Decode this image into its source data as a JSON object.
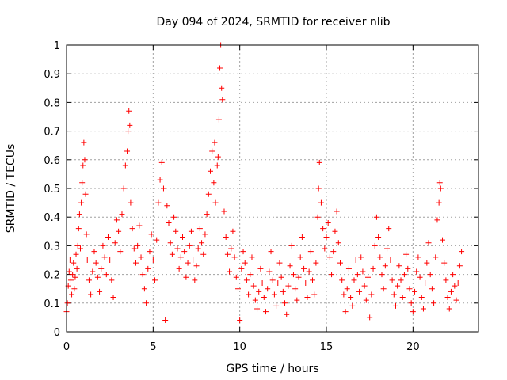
{
  "chart_data": {
    "type": "scatter",
    "title": "Day 094 of 2024, SRMTID for receiver nlib",
    "xlabel": "GPS time / hours",
    "ylabel": "SRMTID / TECUs",
    "xlim": [
      0,
      23.78
    ],
    "ylim": [
      0,
      1
    ],
    "x_ticks": [
      0,
      5,
      10,
      15,
      20
    ],
    "y_ticks": [
      0,
      0.1,
      0.2,
      0.3,
      0.4,
      0.5,
      0.6,
      0.7,
      0.8,
      0.9,
      1
    ],
    "x_tick_labels": [
      "0",
      "5",
      "10",
      "15",
      "20"
    ],
    "y_tick_labels": [
      "0",
      "0.1",
      "0.2",
      "0.3",
      "0.4",
      "0.5",
      "0.6",
      "0.7",
      "0.8",
      "0.9",
      "1"
    ],
    "grid": true,
    "marker": "+",
    "color": "#ff0000",
    "series": [
      {
        "name": "SRMTID",
        "points": [
          [
            0.0,
            0.07
          ],
          [
            0.05,
            0.1
          ],
          [
            0.1,
            0.16
          ],
          [
            0.15,
            0.21
          ],
          [
            0.2,
            0.25
          ],
          [
            0.25,
            0.18
          ],
          [
            0.3,
            0.13
          ],
          [
            0.35,
            0.2
          ],
          [
            0.4,
            0.24
          ],
          [
            0.45,
            0.15
          ],
          [
            0.5,
            0.19
          ],
          [
            0.55,
            0.27
          ],
          [
            0.6,
            0.22
          ],
          [
            0.65,
            0.3
          ],
          [
            0.7,
            0.36
          ],
          [
            0.75,
            0.41
          ],
          [
            0.8,
            0.29
          ],
          [
            0.85,
            0.45
          ],
          [
            0.9,
            0.52
          ],
          [
            0.95,
            0.58
          ],
          [
            1.0,
            0.66
          ],
          [
            1.05,
            0.6
          ],
          [
            1.1,
            0.48
          ],
          [
            1.15,
            0.34
          ],
          [
            1.2,
            0.25
          ],
          [
            1.3,
            0.18
          ],
          [
            1.4,
            0.13
          ],
          [
            1.5,
            0.21
          ],
          [
            1.6,
            0.28
          ],
          [
            1.7,
            0.24
          ],
          [
            1.8,
            0.19
          ],
          [
            1.9,
            0.14
          ],
          [
            2.0,
            0.22
          ],
          [
            2.1,
            0.3
          ],
          [
            2.2,
            0.26
          ],
          [
            2.3,
            0.2
          ],
          [
            2.4,
            0.33
          ],
          [
            2.5,
            0.25
          ],
          [
            2.6,
            0.18
          ],
          [
            2.7,
            0.12
          ],
          [
            2.8,
            0.31
          ],
          [
            2.9,
            0.39
          ],
          [
            3.0,
            0.35
          ],
          [
            3.1,
            0.28
          ],
          [
            3.2,
            0.41
          ],
          [
            3.3,
            0.5
          ],
          [
            3.4,
            0.58
          ],
          [
            3.5,
            0.63
          ],
          [
            3.55,
            0.7
          ],
          [
            3.6,
            0.77
          ],
          [
            3.65,
            0.72
          ],
          [
            3.7,
            0.45
          ],
          [
            3.8,
            0.36
          ],
          [
            3.9,
            0.29
          ],
          [
            4.0,
            0.24
          ],
          [
            4.1,
            0.3
          ],
          [
            4.2,
            0.37
          ],
          [
            4.3,
            0.26
          ],
          [
            4.4,
            0.2
          ],
          [
            4.5,
            0.15
          ],
          [
            4.6,
            0.1
          ],
          [
            4.7,
            0.22
          ],
          [
            4.8,
            0.28
          ],
          [
            4.9,
            0.34
          ],
          [
            5.0,
            0.25
          ],
          [
            5.1,
            0.18
          ],
          [
            5.2,
            0.32
          ],
          [
            5.3,
            0.45
          ],
          [
            5.4,
            0.53
          ],
          [
            5.5,
            0.59
          ],
          [
            5.6,
            0.5
          ],
          [
            5.7,
            0.04
          ],
          [
            5.8,
            0.44
          ],
          [
            5.9,
            0.38
          ],
          [
            6.0,
            0.31
          ],
          [
            6.1,
            0.27
          ],
          [
            6.2,
            0.4
          ],
          [
            6.3,
            0.35
          ],
          [
            6.4,
            0.29
          ],
          [
            6.5,
            0.22
          ],
          [
            6.6,
            0.26
          ],
          [
            6.7,
            0.33
          ],
          [
            6.8,
            0.28
          ],
          [
            6.9,
            0.19
          ],
          [
            7.0,
            0.24
          ],
          [
            7.1,
            0.3
          ],
          [
            7.2,
            0.35
          ],
          [
            7.3,
            0.25
          ],
          [
            7.4,
            0.18
          ],
          [
            7.5,
            0.23
          ],
          [
            7.6,
            0.29
          ],
          [
            7.7,
            0.36
          ],
          [
            7.8,
            0.31
          ],
          [
            7.9,
            0.27
          ],
          [
            8.0,
            0.34
          ],
          [
            8.1,
            0.41
          ],
          [
            8.2,
            0.48
          ],
          [
            8.3,
            0.56
          ],
          [
            8.4,
            0.63
          ],
          [
            8.5,
            0.52
          ],
          [
            8.55,
            0.66
          ],
          [
            8.6,
            0.45
          ],
          [
            8.7,
            0.58
          ],
          [
            8.75,
            0.61
          ],
          [
            8.8,
            0.74
          ],
          [
            8.85,
            0.92
          ],
          [
            8.9,
            1.0
          ],
          [
            8.95,
            0.85
          ],
          [
            9.0,
            0.81
          ],
          [
            9.1,
            0.42
          ],
          [
            9.2,
            0.33
          ],
          [
            9.3,
            0.27
          ],
          [
            9.4,
            0.21
          ],
          [
            9.5,
            0.29
          ],
          [
            9.6,
            0.35
          ],
          [
            9.7,
            0.26
          ],
          [
            9.8,
            0.19
          ],
          [
            9.9,
            0.15
          ],
          [
            10.0,
            0.04
          ],
          [
            10.1,
            0.22
          ],
          [
            10.2,
            0.28
          ],
          [
            10.3,
            0.24
          ],
          [
            10.4,
            0.18
          ],
          [
            10.5,
            0.13
          ],
          [
            10.6,
            0.2
          ],
          [
            10.7,
            0.26
          ],
          [
            10.8,
            0.16
          ],
          [
            10.9,
            0.11
          ],
          [
            11.0,
            0.08
          ],
          [
            11.1,
            0.14
          ],
          [
            11.2,
            0.22
          ],
          [
            11.3,
            0.17
          ],
          [
            11.4,
            0.12
          ],
          [
            11.5,
            0.07
          ],
          [
            11.6,
            0.15
          ],
          [
            11.7,
            0.21
          ],
          [
            11.8,
            0.28
          ],
          [
            11.9,
            0.18
          ],
          [
            12.0,
            0.13
          ],
          [
            12.1,
            0.09
          ],
          [
            12.2,
            0.17
          ],
          [
            12.3,
            0.24
          ],
          [
            12.4,
            0.19
          ],
          [
            12.5,
            0.14
          ],
          [
            12.6,
            0.1
          ],
          [
            12.7,
            0.06
          ],
          [
            12.8,
            0.16
          ],
          [
            12.9,
            0.23
          ],
          [
            13.0,
            0.3
          ],
          [
            13.1,
            0.2
          ],
          [
            13.2,
            0.15
          ],
          [
            13.3,
            0.11
          ],
          [
            13.4,
            0.19
          ],
          [
            13.5,
            0.26
          ],
          [
            13.6,
            0.33
          ],
          [
            13.7,
            0.22
          ],
          [
            13.8,
            0.17
          ],
          [
            13.9,
            0.12
          ],
          [
            14.0,
            0.21
          ],
          [
            14.1,
            0.28
          ],
          [
            14.2,
            0.18
          ],
          [
            14.3,
            0.13
          ],
          [
            14.4,
            0.24
          ],
          [
            14.5,
            0.4
          ],
          [
            14.55,
            0.5
          ],
          [
            14.6,
            0.59
          ],
          [
            14.7,
            0.45
          ],
          [
            14.8,
            0.36
          ],
          [
            14.9,
            0.29
          ],
          [
            15.0,
            0.33
          ],
          [
            15.1,
            0.38
          ],
          [
            15.2,
            0.26
          ],
          [
            15.3,
            0.2
          ],
          [
            15.4,
            0.28
          ],
          [
            15.5,
            0.35
          ],
          [
            15.6,
            0.42
          ],
          [
            15.7,
            0.31
          ],
          [
            15.8,
            0.24
          ],
          [
            15.9,
            0.18
          ],
          [
            16.0,
            0.13
          ],
          [
            16.1,
            0.07
          ],
          [
            16.2,
            0.15
          ],
          [
            16.3,
            0.22
          ],
          [
            16.4,
            0.12
          ],
          [
            16.5,
            0.09
          ],
          [
            16.6,
            0.18
          ],
          [
            16.7,
            0.25
          ],
          [
            16.8,
            0.2
          ],
          [
            16.9,
            0.14
          ],
          [
            17.0,
            0.26
          ],
          [
            17.1,
            0.21
          ],
          [
            17.2,
            0.16
          ],
          [
            17.3,
            0.11
          ],
          [
            17.4,
            0.19
          ],
          [
            17.5,
            0.05
          ],
          [
            17.6,
            0.13
          ],
          [
            17.7,
            0.22
          ],
          [
            17.8,
            0.3
          ],
          [
            17.9,
            0.4
          ],
          [
            18.0,
            0.33
          ],
          [
            18.1,
            0.26
          ],
          [
            18.2,
            0.2
          ],
          [
            18.3,
            0.15
          ],
          [
            18.4,
            0.23
          ],
          [
            18.5,
            0.29
          ],
          [
            18.6,
            0.36
          ],
          [
            18.7,
            0.25
          ],
          [
            18.8,
            0.18
          ],
          [
            18.9,
            0.13
          ],
          [
            19.0,
            0.09
          ],
          [
            19.1,
            0.16
          ],
          [
            19.2,
            0.23
          ],
          [
            19.3,
            0.18
          ],
          [
            19.4,
            0.12
          ],
          [
            19.5,
            0.2
          ],
          [
            19.6,
            0.27
          ],
          [
            19.7,
            0.22
          ],
          [
            19.8,
            0.15
          ],
          [
            19.9,
            0.1
          ],
          [
            20.0,
            0.07
          ],
          [
            20.1,
            0.14
          ],
          [
            20.2,
            0.21
          ],
          [
            20.3,
            0.26
          ],
          [
            20.4,
            0.19
          ],
          [
            20.5,
            0.12
          ],
          [
            20.6,
            0.08
          ],
          [
            20.7,
            0.17
          ],
          [
            20.8,
            0.24
          ],
          [
            20.9,
            0.31
          ],
          [
            21.0,
            0.2
          ],
          [
            21.1,
            0.15
          ],
          [
            21.2,
            0.1
          ],
          [
            21.3,
            0.26
          ],
          [
            21.4,
            0.39
          ],
          [
            21.5,
            0.45
          ],
          [
            21.55,
            0.52
          ],
          [
            21.6,
            0.5
          ],
          [
            21.7,
            0.32
          ],
          [
            21.8,
            0.24
          ],
          [
            21.9,
            0.18
          ],
          [
            22.0,
            0.12
          ],
          [
            22.1,
            0.08
          ],
          [
            22.2,
            0.14
          ],
          [
            22.3,
            0.2
          ],
          [
            22.4,
            0.16
          ],
          [
            22.5,
            0.11
          ],
          [
            22.6,
            0.17
          ],
          [
            22.7,
            0.23
          ],
          [
            22.8,
            0.28
          ]
        ]
      }
    ]
  }
}
